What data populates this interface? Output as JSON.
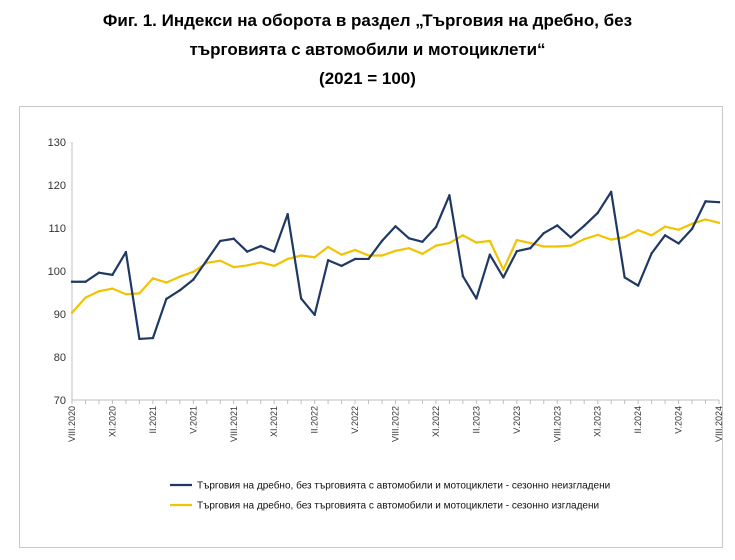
{
  "title": {
    "line1": "Фиг. 1. Индекси на оборота в раздел „Търговия на дребно, без",
    "line2": "търговията с автомобили и мотоциклети“",
    "line3": "(2021 = 100)"
  },
  "chart_data": {
    "type": "line",
    "title": "Фиг. 1. Индекси на оборота в раздел „Търговия на дребно, без търговията с автомобили и мотоциклети“ (2021 = 100)",
    "xlabel": "",
    "ylabel": "",
    "ylim": [
      70,
      130
    ],
    "yticks": [
      70,
      80,
      90,
      100,
      110,
      120,
      130
    ],
    "grid": false,
    "legend_position": "bottom",
    "x_tick_labels": [
      {
        "index": 0,
        "label": "VIII.2020"
      },
      {
        "index": 3,
        "label": "XI.2020"
      },
      {
        "index": 6,
        "label": "II.2021"
      },
      {
        "index": 9,
        "label": "V.2021"
      },
      {
        "index": 12,
        "label": "VIII.2021"
      },
      {
        "index": 15,
        "label": "XI.2021"
      },
      {
        "index": 18,
        "label": "II.2022"
      },
      {
        "index": 21,
        "label": "V.2022"
      },
      {
        "index": 24,
        "label": "VIII.2022"
      },
      {
        "index": 27,
        "label": "XI.2022"
      },
      {
        "index": 30,
        "label": "II.2023"
      },
      {
        "index": 33,
        "label": "V.2023"
      },
      {
        "index": 36,
        "label": "VIII.2023"
      },
      {
        "index": 39,
        "label": "XI.2023"
      },
      {
        "index": 42,
        "label": "II.2024"
      },
      {
        "index": 45,
        "label": "V.2024"
      },
      {
        "index": 48,
        "label": "VIII.2024"
      }
    ],
    "series": [
      {
        "name": "Търговия на дребно, без търговията с автомобили и мотоциклети - сезонно неизгладени",
        "color": "#1f3864",
        "values": [
          97.5,
          97.5,
          99.6,
          99.1,
          104.4,
          84.2,
          84.4,
          93.5,
          95.5,
          98.0,
          102.5,
          107.0,
          107.5,
          104.5,
          105.8,
          104.5,
          113.2,
          93.6,
          89.8,
          102.5,
          101.2,
          102.8,
          102.8,
          107.0,
          110.4,
          107.6,
          106.8,
          110.2,
          117.6,
          98.8,
          93.6,
          103.8,
          98.5,
          104.6,
          105.3,
          108.8,
          110.6,
          107.8,
          110.5,
          113.5,
          118.4,
          98.5,
          96.6,
          104.1,
          108.3,
          106.4,
          109.8,
          116.2,
          116.0
        ]
      },
      {
        "name": "Търговия на дребно, без търговията с автомобили и мотоциклети - сезонно изгладени",
        "color": "#f2c300",
        "values": [
          90.3,
          93.8,
          95.3,
          95.9,
          94.6,
          94.8,
          98.3,
          97.3,
          98.7,
          99.8,
          101.9,
          102.4,
          100.9,
          101.3,
          102.0,
          101.2,
          102.8,
          103.6,
          103.2,
          105.6,
          103.8,
          104.9,
          103.6,
          103.6,
          104.7,
          105.3,
          104.0,
          105.9,
          106.5,
          108.3,
          106.6,
          107.0,
          100.3,
          107.2,
          106.5,
          105.7,
          105.7,
          105.9,
          107.4,
          108.4,
          107.3,
          107.9,
          109.5,
          108.3,
          110.3,
          109.6,
          111.0,
          112.0,
          111.2
        ]
      }
    ]
  }
}
